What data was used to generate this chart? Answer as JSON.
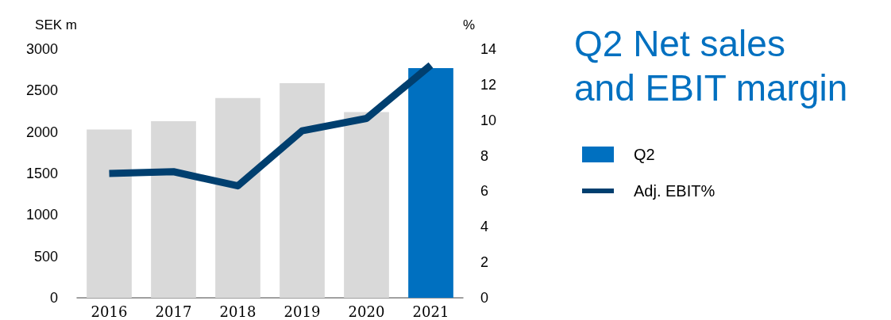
{
  "chart_data": {
    "type": "bar",
    "title": "Q2 Net sales and EBIT margin",
    "ylabel": "SEK m",
    "y2label": "%",
    "categories": [
      "2016",
      "2017",
      "2018",
      "2019",
      "2020",
      "2021"
    ],
    "series": [
      {
        "name": "Q2",
        "colors": [
          "#d9d9d9",
          "#d9d9d9",
          "#d9d9d9",
          "#d9d9d9",
          "#d9d9d9",
          "#0070c0"
        ],
        "values": [
          2030,
          2130,
          2410,
          2590,
          2240,
          2770
        ]
      },
      {
        "name": "Adj. EBIT%",
        "type": "line",
        "axis": "y2",
        "color": "#003f6f",
        "values": [
          7.0,
          7.1,
          6.3,
          9.4,
          10.1,
          13.1
        ]
      }
    ],
    "ylim": [
      0,
      3000
    ],
    "yticks": [
      0,
      500,
      1000,
      1500,
      2000,
      2500,
      3000
    ],
    "y2lim": [
      0,
      14
    ],
    "y2ticks": [
      0,
      2,
      4,
      6,
      8,
      10,
      12,
      14
    ],
    "grid": false,
    "legend": "right",
    "marker": "none",
    "line_style": "solid"
  }
}
